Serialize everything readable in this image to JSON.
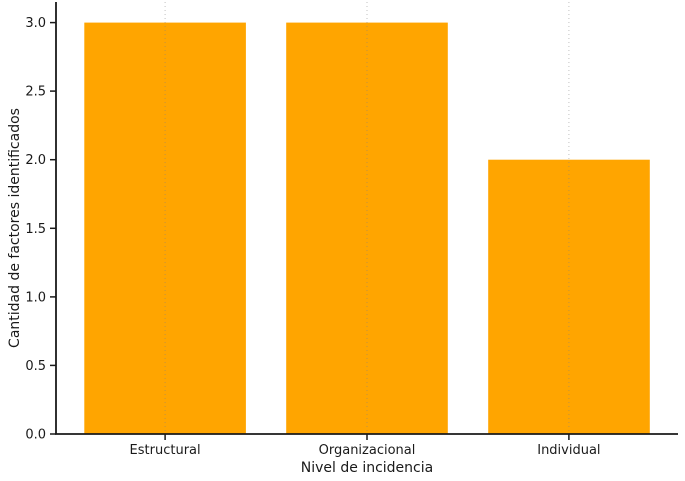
{
  "chart_data": {
    "type": "bar",
    "categories": [
      "Estructural",
      "Organizacional",
      "Individual"
    ],
    "values": [
      3,
      3,
      2
    ],
    "title": "",
    "xlabel": "Nivel de incidencia",
    "ylabel": "Cantidad de factores identificados",
    "yticks": [
      0.0,
      0.5,
      1.0,
      1.5,
      2.0,
      2.5,
      3.0
    ],
    "ytick_labels": [
      "0.0",
      "0.5",
      "1.0",
      "1.5",
      "2.0",
      "2.5",
      "3.0"
    ],
    "ylim": [
      0,
      3.15
    ],
    "bar_width_fraction": 0.8,
    "bar_color": "#FFA500",
    "gridline_color": "#cdcdcd",
    "grid": "vertical-dotted",
    "axis_color": "#1a1a1a",
    "text_color": "#1a1a1a",
    "legend_position": "none",
    "background_color": "#ffffff"
  }
}
